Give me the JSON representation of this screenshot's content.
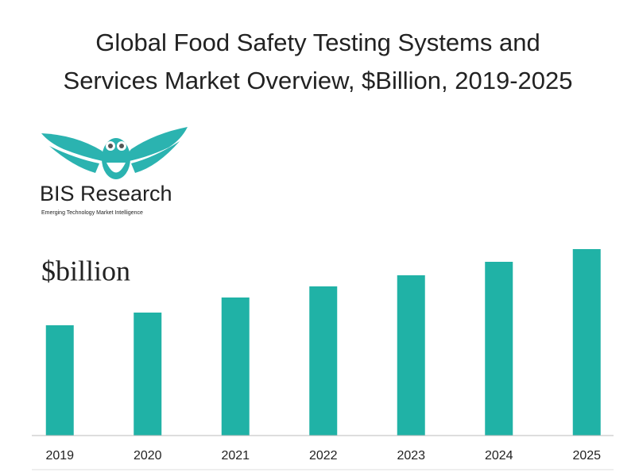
{
  "chart_data": {
    "type": "bar",
    "title": [
      "Global Food Safety Testing Systems and",
      "Services Market Overview, $Billion, 2019-2025"
    ],
    "logo": {
      "name": "BIS Research",
      "tagline": "Emerging Technology Market Intelligence"
    },
    "y_label": "$billion",
    "categories": [
      "2019",
      "2020",
      "2021",
      "2022",
      "2023",
      "2024",
      "2025"
    ],
    "values": [
      13.9,
      15.5,
      17.4,
      18.8,
      20.2,
      21.9,
      23.5
    ],
    "color": "#20b2a6",
    "ylim": [
      0,
      27
    ]
  }
}
